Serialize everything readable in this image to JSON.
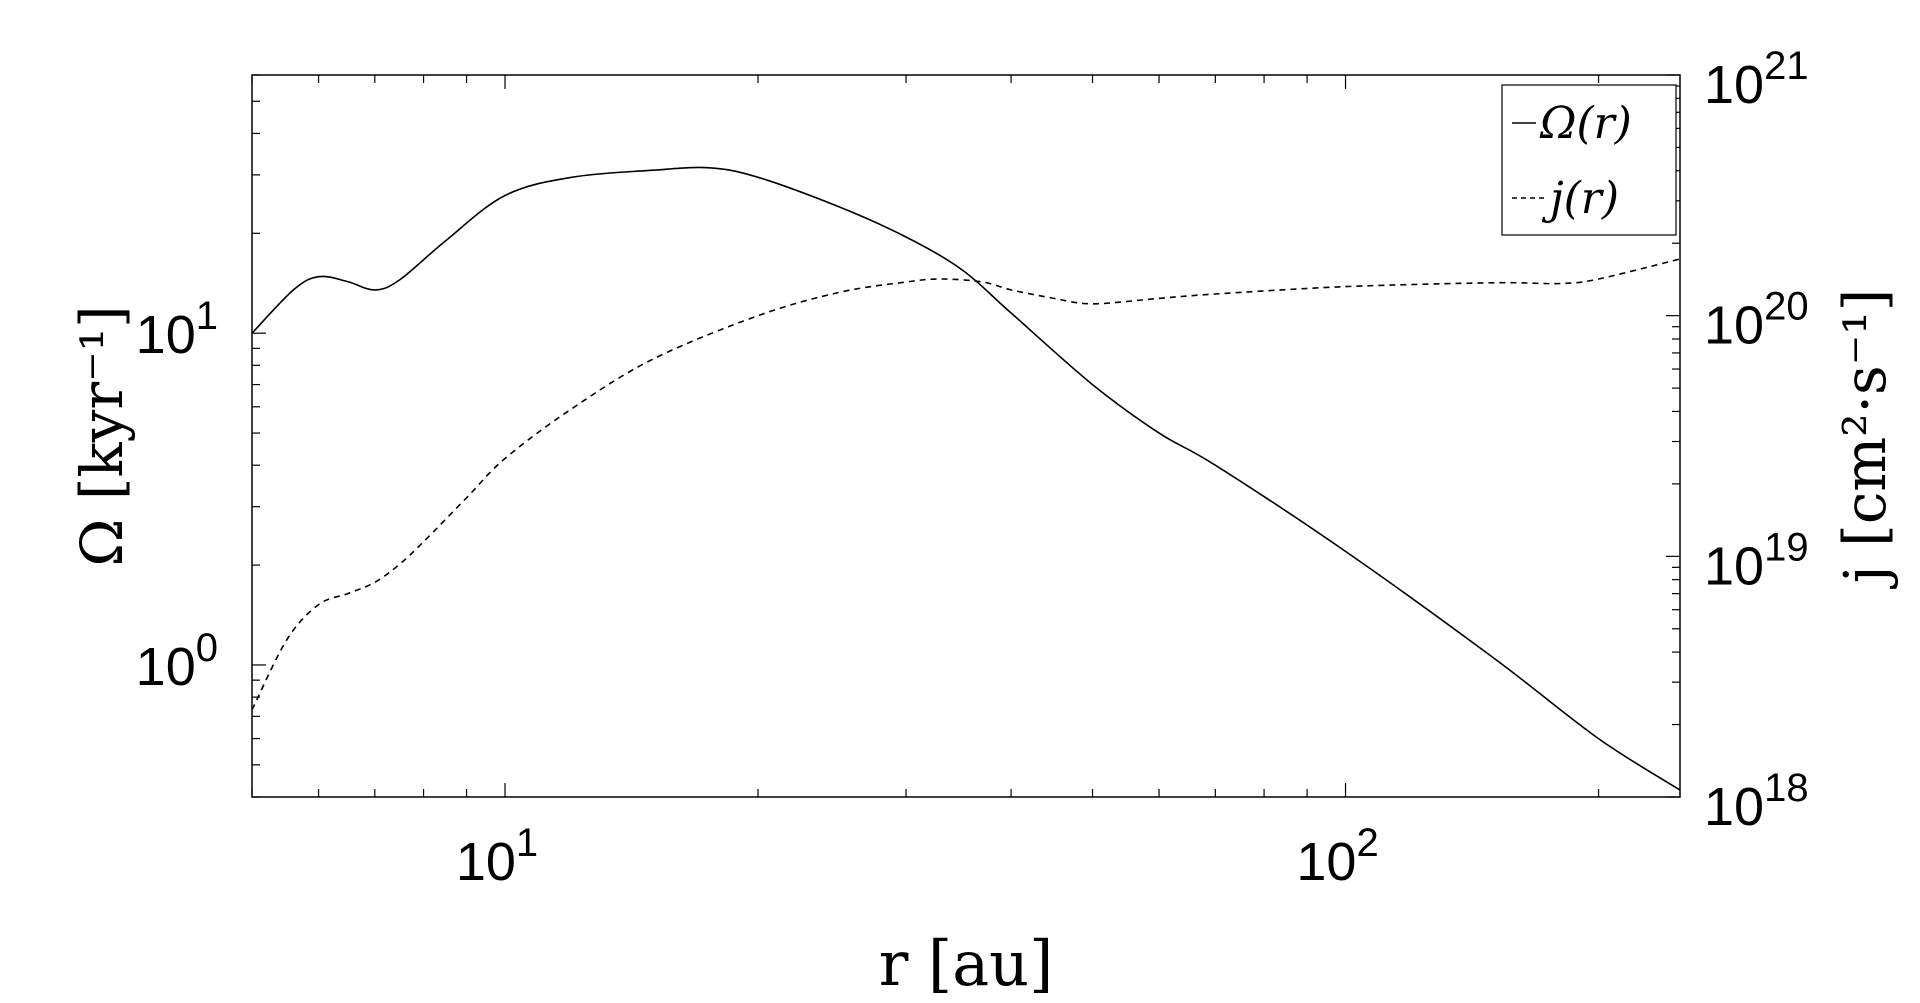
{
  "chart_data": {
    "type": "line",
    "x_scale": "log",
    "left_y_scale": "log",
    "right_y_scale": "log",
    "xlabel": "r [au]",
    "ylabel_left": "Ω [kyr⁻¹]",
    "ylabel_right": "j [cm²·s⁻¹]",
    "xlim": [
      5,
      250
    ],
    "ylim_left": [
      0.4,
      60
    ],
    "ylim_right": [
      1e+18,
      1e+21
    ],
    "x_ticks": [
      {
        "value": 10,
        "base": "10",
        "exp": "1"
      },
      {
        "value": 100,
        "base": "10",
        "exp": "2"
      }
    ],
    "left_ticks": [
      {
        "value": 1,
        "base": "10",
        "exp": "0"
      },
      {
        "value": 10,
        "base": "10",
        "exp": "1"
      }
    ],
    "right_ticks": [
      {
        "value": 1e+18,
        "base": "10",
        "exp": "18"
      },
      {
        "value": 1e+19,
        "base": "10",
        "exp": "19"
      },
      {
        "value": 1e+20,
        "base": "10",
        "exp": "20"
      },
      {
        "value": 1e+21,
        "base": "10",
        "exp": "21"
      }
    ],
    "grid": false,
    "legend_position": "top-right",
    "series": [
      {
        "name": "Ω(r)",
        "axis": "left",
        "style": "solid",
        "x": [
          5,
          5.6,
          6,
          6.5,
          7,
          7.5,
          8.5,
          10,
          12,
          15,
          17.5,
          20,
          25,
          30,
          35,
          40,
          50,
          60,
          70,
          100,
          150,
          200,
          250
        ],
        "y": [
          10,
          13.5,
          14.8,
          14.3,
          13.5,
          14.5,
          19,
          26,
          29.5,
          31,
          31.5,
          29.5,
          24,
          19.5,
          15.5,
          11.5,
          7,
          5,
          4,
          2.2,
          1.05,
          0.6,
          0.42
        ]
      },
      {
        "name": "j(r)",
        "axis": "right",
        "style": "dashed",
        "x": [
          5,
          5.5,
          6,
          6.5,
          7,
          7.5,
          8,
          9,
          10,
          12,
          15,
          20,
          25,
          30,
          33,
          37,
          40,
          45,
          50,
          60,
          70,
          100,
          150,
          180,
          200,
          250
        ],
        "y": [
          2.3e+18,
          4.5e+18,
          6.3e+18,
          7e+18,
          7.8e+18,
          9.3e+18,
          1.15e+19,
          1.75e+19,
          2.55e+19,
          4.1e+19,
          6.6e+19,
          1e+20,
          1.25e+20,
          1.38e+20,
          1.42e+20,
          1.38e+20,
          1.28e+20,
          1.18e+20,
          1.12e+20,
          1.18e+20,
          1.23e+20,
          1.32e+20,
          1.37e+20,
          1.36e+20,
          1.42e+20,
          1.72e+20
        ]
      }
    ]
  }
}
